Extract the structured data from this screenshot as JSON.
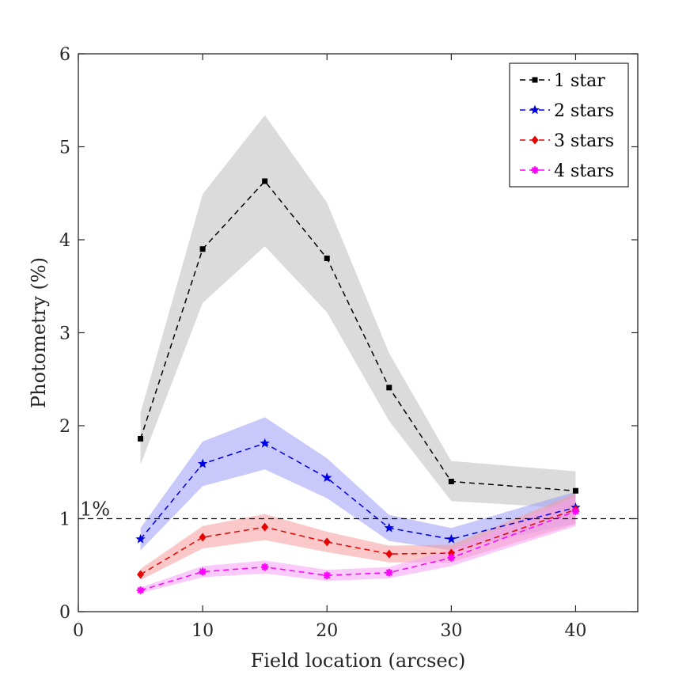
{
  "chart_data": {
    "type": "line",
    "title": "",
    "xlabel": "Field location (arcsec)",
    "ylabel": "Photometry (%)",
    "xlim": [
      0,
      45
    ],
    "ylim": [
      0,
      6
    ],
    "xticks": [
      0,
      10,
      20,
      30,
      40
    ],
    "yticks": [
      0,
      1,
      2,
      3,
      4,
      5,
      6
    ],
    "x": [
      5,
      10,
      15,
      20,
      25,
      30,
      40
    ],
    "legend_position": "top-right",
    "series": [
      {
        "name": "1 star",
        "color": "#000000",
        "band_color": "#bdbdbd",
        "marker": "square",
        "values": [
          1.86,
          3.9,
          4.63,
          3.8,
          2.41,
          1.4,
          1.3
        ],
        "lower": [
          1.58,
          3.32,
          3.93,
          3.22,
          2.05,
          1.19,
          1.11
        ],
        "upper": [
          2.14,
          4.49,
          5.34,
          4.4,
          2.78,
          1.62,
          1.51
        ]
      },
      {
        "name": "2 stars",
        "color": "#0000e6",
        "band_color": "#9a9af5",
        "marker": "star",
        "values": [
          0.78,
          1.59,
          1.81,
          1.44,
          0.9,
          0.78,
          1.12
        ],
        "lower": [
          0.66,
          1.35,
          1.53,
          1.22,
          0.76,
          0.66,
          0.95
        ],
        "upper": [
          0.9,
          1.83,
          2.09,
          1.65,
          1.04,
          0.9,
          1.29
        ]
      },
      {
        "name": "3 stars",
        "color": "#e60000",
        "band_color": "#f59a9a",
        "marker": "diamond",
        "values": [
          0.4,
          0.8,
          0.91,
          0.75,
          0.62,
          0.63,
          1.1
        ],
        "lower": [
          0.34,
          0.68,
          0.77,
          0.64,
          0.53,
          0.53,
          0.94
        ],
        "upper": [
          0.46,
          0.92,
          1.05,
          0.86,
          0.71,
          0.72,
          1.27
        ]
      },
      {
        "name": "4 stars",
        "color": "#ff00ff",
        "band_color": "#f5a0f5",
        "marker": "asterisk",
        "values": [
          0.23,
          0.43,
          0.48,
          0.39,
          0.42,
          0.58,
          1.08
        ],
        "lower": [
          0.2,
          0.37,
          0.41,
          0.33,
          0.36,
          0.49,
          0.92
        ],
        "upper": [
          0.26,
          0.49,
          0.55,
          0.45,
          0.48,
          0.67,
          1.24
        ]
      }
    ],
    "reference_line": {
      "y": 1,
      "label": "1%"
    }
  }
}
